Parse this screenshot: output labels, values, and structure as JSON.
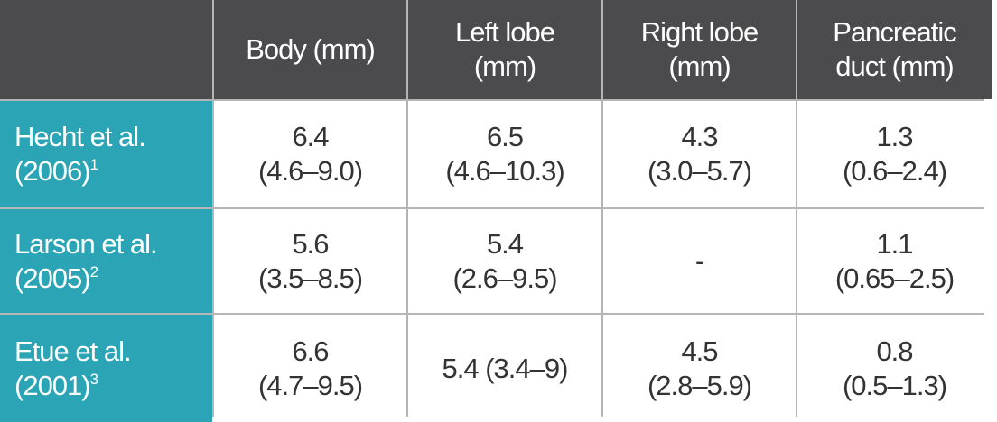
{
  "table": {
    "header": [
      [
        "Body (mm)"
      ],
      [
        "Left lobe",
        "(mm)"
      ],
      [
        "Right lobe",
        "(mm)"
      ],
      [
        "Pancreatic",
        "duct (mm)"
      ]
    ],
    "rows": [
      {
        "label": [
          "Hecht et al.",
          "(2006)"
        ],
        "ref": "1",
        "cells": [
          [
            "6.4",
            "(4.6–9.0)"
          ],
          [
            "6.5",
            "(4.6–10.3)"
          ],
          [
            "4.3",
            "(3.0–5.7)"
          ],
          [
            "1.3",
            "(0.6–2.4)"
          ]
        ]
      },
      {
        "label": [
          "Larson et al.",
          "(2005)"
        ],
        "ref": "2",
        "cells": [
          [
            "5.6",
            "(3.5–8.5)"
          ],
          [
            "5.4",
            "(2.6–9.5)"
          ],
          [
            "-"
          ],
          [
            "1.1",
            "(0.65–2.5)"
          ]
        ]
      },
      {
        "label": [
          "Etue et al.",
          "(2001)"
        ],
        "ref": "3",
        "cells": [
          [
            "6.6",
            "(4.7–9.5)"
          ],
          [
            "5.4 (3.4–9)"
          ],
          [
            "4.5",
            "(2.8–5.9)"
          ],
          [
            "0.8",
            "(0.5–1.3)"
          ]
        ]
      }
    ]
  }
}
